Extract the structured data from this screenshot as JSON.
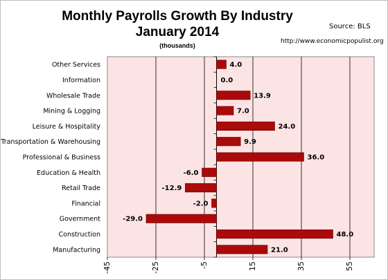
{
  "chart_data": {
    "type": "bar",
    "orientation": "horizontal",
    "title": "Monthly Payrolls Growth By Industry",
    "subtitle": "January 2014",
    "unit_note": "(thousands)",
    "source": "Source:  BLS",
    "url": "http://www.economicpopulist.org",
    "xlim": [
      -45,
      65
    ],
    "x_ticks": [
      "-45",
      "-25",
      "-5",
      "15",
      "35",
      "55"
    ],
    "grid": true,
    "categories": [
      "Other Services",
      "Information",
      "Wholesale Trade",
      "Mining & Logging",
      "Leisure & Hospitality",
      "Transportation & Warehousing",
      "Professional & Business",
      "Education & Health",
      "Retail Trade",
      "Financial",
      "Government",
      "Construction",
      "Manufacturing"
    ],
    "values": [
      4.0,
      0.0,
      13.9,
      7.0,
      24.0,
      9.9,
      36.0,
      -6.0,
      -12.9,
      -2.0,
      -29.0,
      48.0,
      21.0
    ],
    "value_labels": [
      "4.0",
      "0.0",
      "13.9",
      "7.0",
      "24.0",
      "9.9",
      "36.0",
      "-6.0",
      "-12.9",
      "-2.0",
      "-29.0",
      "48.0",
      "21.0"
    ],
    "bar_color": "#aa0a0a",
    "plot_background": "#fce4e4"
  }
}
